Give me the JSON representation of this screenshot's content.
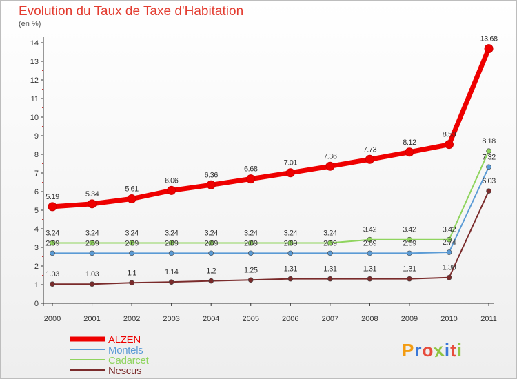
{
  "page": {
    "title": "Evolution du Taux de Taxe d'Habitation",
    "unit_label": "(en %)"
  },
  "logo": {
    "text": "Proxiti",
    "letter_colors": [
      "#f39c12",
      "#3b78d8",
      "#e74c3c",
      "#8fc541",
      "#3b78d8",
      "#e74c3c",
      "#8fc541"
    ]
  },
  "chart_data": {
    "type": "line",
    "x": [
      "2000",
      "2001",
      "2002",
      "2003",
      "2004",
      "2005",
      "2006",
      "2007",
      "2008",
      "2009",
      "2010",
      "2011"
    ],
    "ylim": [
      0,
      14
    ],
    "yticks": [
      0,
      1,
      2,
      3,
      4,
      5,
      6,
      7,
      8,
      9,
      10,
      11,
      12,
      13,
      14
    ],
    "grid": false,
    "legend_position": "bottom-left",
    "series": [
      {
        "name": "ALZEN",
        "color": "#ee0000",
        "values": [
          5.19,
          5.34,
          5.61,
          6.06,
          6.36,
          6.68,
          7.01,
          7.36,
          7.73,
          8.12,
          8.53,
          13.68
        ],
        "labels": [
          "5.19",
          "5.34",
          "5.61",
          "6.06",
          "6.36",
          "6.68",
          "7.01",
          "7.36",
          "7.73",
          "8.12",
          "8.53",
          "13.68"
        ]
      },
      {
        "name": "Montels",
        "color": "#5b9bd5",
        "values": [
          2.69,
          2.69,
          2.69,
          2.69,
          2.69,
          2.69,
          2.69,
          2.69,
          2.69,
          2.69,
          2.74,
          7.32
        ],
        "labels": [
          "2.69",
          "2.69",
          "2.69",
          "2.69",
          "2.69",
          "2.69",
          "2.69",
          "2.69",
          "2.69",
          "2.69",
          "2.74",
          "7.32"
        ]
      },
      {
        "name": "Cadarcet",
        "color": "#8fd45e",
        "values": [
          3.24,
          3.24,
          3.24,
          3.24,
          3.24,
          3.24,
          3.24,
          3.24,
          3.42,
          3.42,
          3.42,
          8.18
        ],
        "labels": [
          "3.24",
          "3.24",
          "3.24",
          "3.24",
          "3.24",
          "3.24",
          "3.24",
          "3.24",
          "3.42",
          "3.42",
          "3.42",
          "8.18"
        ]
      },
      {
        "name": "Nescus",
        "color": "#7a2b2b",
        "values": [
          1.03,
          1.03,
          1.1,
          1.14,
          1.2,
          1.25,
          1.31,
          1.31,
          1.31,
          1.31,
          1.38,
          6.03
        ],
        "labels": [
          "1.03",
          "1.03",
          "1.1",
          "1.14",
          "1.2",
          "1.25",
          "1.31",
          "1.31",
          "1.31",
          "1.31",
          "1.38",
          "6.03"
        ]
      }
    ]
  }
}
